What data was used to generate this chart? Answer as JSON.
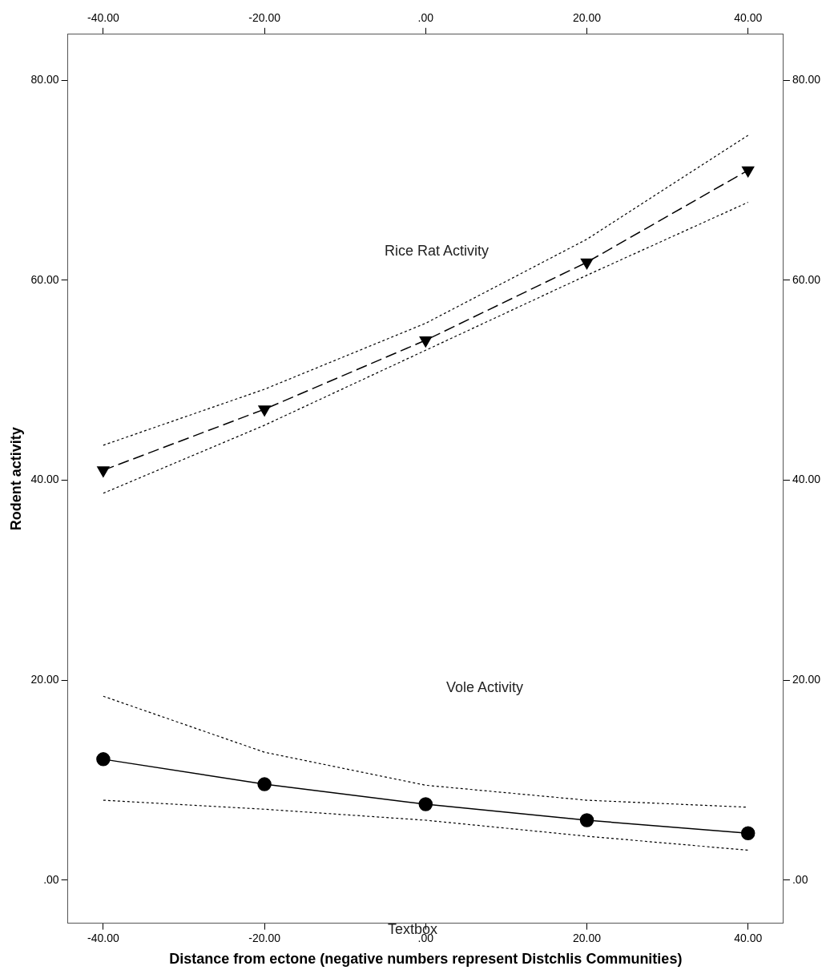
{
  "chart_data": {
    "type": "line",
    "xlabel": "Distance from ectone (negative numbers represent Distchlis Communities)",
    "ylabel": "Rodent activity",
    "x": [
      -40,
      -20,
      0,
      20,
      40
    ],
    "series": [
      {
        "color": "#000000",
        "line_style": "dashed",
        "marker": "triangle",
        "values": [
          41.0,
          47.1,
          54.0,
          61.8,
          71.0
        ]
      },
      {
        "color": "#000000",
        "line_style": "dotted",
        "values": [
          38.7,
          45.5,
          53.0,
          60.5,
          67.8
        ]
      },
      {
        "color": "#000000",
        "line_style": "dotted",
        "values": [
          43.5,
          49.1,
          55.7,
          64.1,
          74.5
        ]
      },
      {
        "color": "#000000",
        "line_style": "solid",
        "marker": "circle",
        "values": [
          12.1,
          9.6,
          7.6,
          6.0,
          4.7
        ]
      },
      {
        "color": "#000000",
        "line_style": "dotted",
        "values": [
          8.0,
          7.1,
          6.0,
          4.4,
          3.0
        ]
      },
      {
        "color": "#000000",
        "line_style": "dotted",
        "values": [
          18.4,
          12.8,
          9.5,
          8.0,
          7.3
        ]
      }
    ],
    "xlim": [
      -44.4,
      44.4
    ],
    "xticks": [
      {
        "value": -40,
        "label": "-40.00"
      },
      {
        "value": -20,
        "label": "-20.00"
      },
      {
        "value": 0,
        "label": ".00"
      },
      {
        "value": 20,
        "label": "20.00"
      },
      {
        "value": 40,
        "label": "40.00"
      }
    ],
    "x2lim": [
      -44.4,
      44.4
    ],
    "x2ticks": [
      {
        "value": -40,
        "label": "-40.00"
      },
      {
        "value": -20,
        "label": "-20.00"
      },
      {
        "value": 0,
        "label": ".00"
      },
      {
        "value": 20,
        "label": "20.00"
      },
      {
        "value": 40,
        "label": "40.00"
      }
    ],
    "ylim": [
      -4.3,
      84.6
    ],
    "yticks": [
      {
        "value": 0,
        "label": ".00"
      },
      {
        "value": 20,
        "label": "20.00"
      },
      {
        "value": 40,
        "label": "40.00"
      },
      {
        "value": 60,
        "label": "60.00"
      },
      {
        "value": 80,
        "label": "80.00"
      }
    ],
    "y2lim": [
      -4.3,
      84.6
    ],
    "y2ticks": [
      {
        "value": 0,
        "label": ".00"
      },
      {
        "value": 20,
        "label": "20.00"
      },
      {
        "value": 40,
        "label": "40.00"
      },
      {
        "value": 60,
        "label": "60.00"
      },
      {
        "value": 80,
        "label": "80.00"
      }
    ],
    "annotations": [
      "Rice Rat Activity",
      "Vole Activity",
      "Textbox"
    ],
    "grid": false,
    "legend": false
  }
}
